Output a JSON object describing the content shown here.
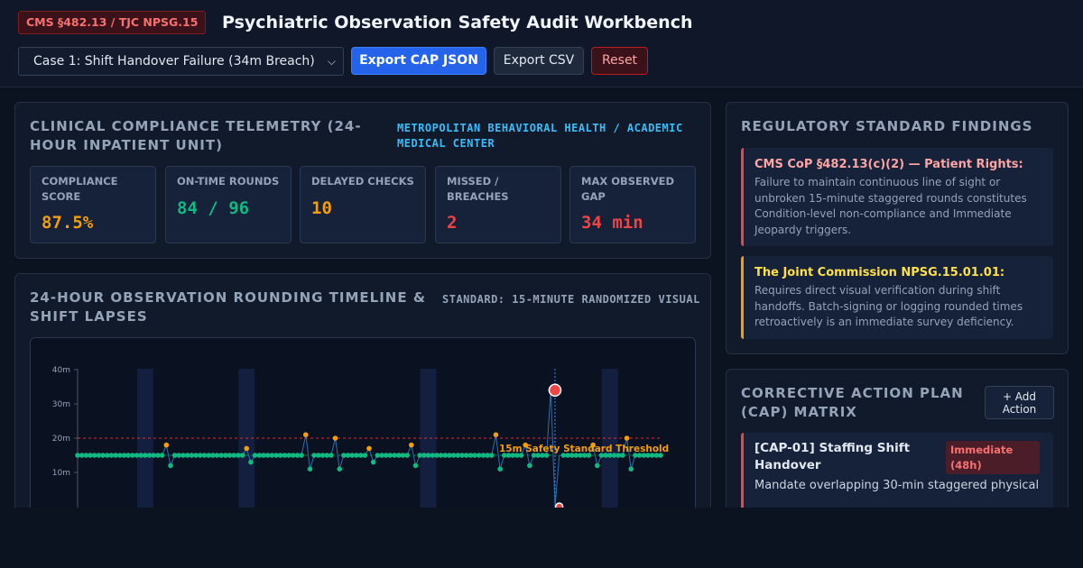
{
  "header": {
    "standard_badge": "CMS §482.13 / TJC NPSG.15",
    "title": "Psychiatric Observation Safety Audit Workbench",
    "case_select": {
      "selected": "Case 1: Shift Handover Failure (34m Breach)"
    },
    "export_cap_label": "Export CAP JSON",
    "export_csv_label": "Export CSV",
    "reset_label": "Reset"
  },
  "telemetry": {
    "title": "Clinical Compliance Telemetry (24-Hour Inpatient Unit)",
    "facility": "METROPOLITAN BEHAVIORAL HEALTH / ACADEMIC MEDICAL CENTER",
    "kpis": [
      {
        "label": "Compliance Score",
        "value": "87.5%",
        "color": "#f59e0b"
      },
      {
        "label": "On-Time Rounds",
        "value": "84 / 96",
        "color": "#10b981"
      },
      {
        "label": "Delayed Checks",
        "value": "10",
        "color": "#f59e0b"
      },
      {
        "label": "Missed / Breaches",
        "value": "2",
        "color": "#ef4444"
      },
      {
        "label": "Max Observed Gap",
        "value": "34 min",
        "color": "#ef4444"
      }
    ]
  },
  "timeline": {
    "title": "24-Hour Observation Rounding Timeline & Shift Lapses",
    "standard": "STANDARD: 15-MINUTE RANDOMIZED VISUAL"
  },
  "findings": {
    "title": "Regulatory Standard Findings",
    "items": [
      {
        "title": "CMS CoP §482.13(c)(2) — Patient Rights:",
        "body": "Failure to maintain continuous line of sight or unbroken 15-minute staggered rounds constitutes Condition-level non-compliance and Immediate Jeopardy triggers.",
        "accent": "#ef4444",
        "title_color": "#fca5a5"
      },
      {
        "title": "The Joint Commission NPSG.15.01.01:",
        "body": "Requires direct visual verification during shift handoffs. Batch-signing or logging rounded times retroactively is an immediate survey deficiency.",
        "accent": "#f59e0b",
        "title_color": "#fde047"
      }
    ]
  },
  "cap": {
    "title": "Corrective Action Plan (CAP) Matrix",
    "add_label": "+ Add Action",
    "items": [
      {
        "title": "[CAP-01] Staffing Shift Handover",
        "priority": "Immediate (48h)",
        "body": "Mandate overlapping 30-min staggered physical"
      }
    ]
  },
  "chart_data": {
    "type": "scatter",
    "title": "",
    "xlabel": "",
    "ylabel": "",
    "y_ticks": [
      "10m",
      "20m",
      "30m",
      "40m"
    ],
    "ylim": [
      0,
      42
    ],
    "threshold": {
      "value": 20,
      "color": "#ef4444"
    },
    "standard_line": {
      "value": 15,
      "label": "15m Safety Standard Threshold"
    },
    "series": [
      {
        "values": [
          15,
          15,
          15,
          15,
          15,
          15,
          15,
          15,
          15,
          15,
          15,
          15,
          15,
          15,
          15,
          15,
          15,
          15,
          15,
          15,
          15,
          18,
          12,
          15,
          15,
          15,
          15,
          15,
          15,
          15,
          15,
          15,
          15,
          15,
          15,
          15,
          15,
          15,
          15,
          15,
          17,
          13,
          15,
          15,
          15,
          15,
          15,
          15,
          15,
          15,
          15,
          15,
          15,
          15,
          21,
          11,
          15,
          15,
          15,
          15,
          15,
          20,
          11,
          15,
          15,
          15,
          15,
          15,
          15,
          17,
          13,
          15,
          15,
          15,
          15,
          15,
          15,
          15,
          15,
          18,
          12,
          15,
          15,
          15,
          15,
          15,
          15,
          15,
          15,
          15,
          15,
          15,
          15,
          15,
          15,
          15,
          15,
          15,
          15,
          21,
          11,
          15,
          15,
          15,
          15,
          15,
          18,
          12,
          15,
          15,
          15,
          15,
          34,
          0,
          15,
          15,
          15,
          15,
          15,
          15,
          15,
          15,
          18,
          12,
          15,
          15,
          15,
          15,
          15,
          15,
          20,
          11,
          15,
          15,
          15,
          15,
          15,
          15,
          15
        ]
      }
    ],
    "highlight_points": [
      {
        "index": 113,
        "value": 34,
        "color": "#ef4444"
      },
      {
        "index": 114,
        "value": 0,
        "color": "#ef4444"
      }
    ],
    "shift_bands": [
      16,
      40,
      83,
      126
    ],
    "colors": {
      "on_time": "#10b981",
      "delayed": "#f59e0b",
      "breach": "#ef4444",
      "line": "#3b82f6"
    }
  }
}
